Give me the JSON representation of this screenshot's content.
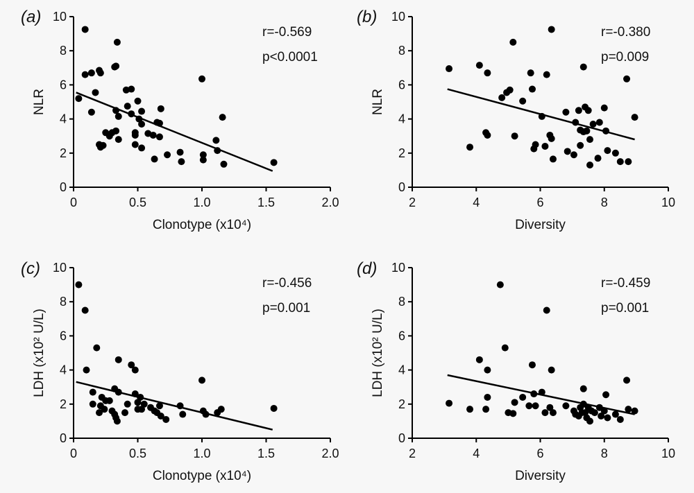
{
  "colors": {
    "background": "#f7f7f7",
    "point": "#000000",
    "axis": "#000000",
    "line": "#000000"
  },
  "chart_data": [
    {
      "type": "scatter",
      "panel_label": "(a)",
      "xlabel": "Clonotype (x10⁴)",
      "ylabel": "NLR",
      "xlim": [
        0,
        2.0
      ],
      "ylim": [
        0,
        10
      ],
      "xticks": [
        "0",
        "0.5",
        "1.0",
        "1.5",
        "2.0"
      ],
      "xtick_values": [
        0,
        0.5,
        1.0,
        1.5,
        2.0
      ],
      "yticks": [
        "0",
        "2",
        "4",
        "6",
        "8",
        "10"
      ],
      "ytick_values": [
        0,
        2,
        4,
        6,
        8,
        10
      ],
      "stats": [
        "r=-0.569",
        "p<0.0001"
      ],
      "grid": false,
      "fit_line": [
        [
          0.02,
          5.55
        ],
        [
          1.55,
          0.95
        ]
      ],
      "points": [
        [
          0.04,
          5.2
        ],
        [
          0.09,
          9.25
        ],
        [
          0.09,
          6.6
        ],
        [
          0.14,
          6.7
        ],
        [
          0.14,
          4.4
        ],
        [
          0.17,
          5.55
        ],
        [
          0.2,
          6.85
        ],
        [
          0.21,
          6.7
        ],
        [
          0.2,
          2.5
        ],
        [
          0.21,
          2.35
        ],
        [
          0.23,
          2.45
        ],
        [
          0.25,
          3.2
        ],
        [
          0.28,
          3.0
        ],
        [
          0.3,
          3.2
        ],
        [
          0.32,
          7.05
        ],
        [
          0.33,
          7.1
        ],
        [
          0.34,
          8.5
        ],
        [
          0.33,
          4.5
        ],
        [
          0.35,
          4.15
        ],
        [
          0.33,
          3.3
        ],
        [
          0.35,
          2.8
        ],
        [
          0.41,
          5.7
        ],
        [
          0.45,
          5.75
        ],
        [
          0.42,
          4.75
        ],
        [
          0.45,
          4.3
        ],
        [
          0.48,
          3.2
        ],
        [
          0.48,
          3.05
        ],
        [
          0.5,
          5.05
        ],
        [
          0.51,
          4.0
        ],
        [
          0.48,
          2.5
        ],
        [
          0.53,
          4.45
        ],
        [
          0.53,
          3.7
        ],
        [
          0.53,
          2.3
        ],
        [
          0.58,
          3.15
        ],
        [
          0.62,
          3.05
        ],
        [
          0.63,
          1.65
        ],
        [
          0.65,
          3.8
        ],
        [
          0.67,
          3.75
        ],
        [
          0.67,
          2.95
        ],
        [
          0.68,
          4.6
        ],
        [
          0.73,
          1.9
        ],
        [
          0.83,
          2.05
        ],
        [
          0.84,
          1.5
        ],
        [
          1.0,
          6.35
        ],
        [
          1.01,
          1.9
        ],
        [
          1.01,
          1.6
        ],
        [
          1.11,
          2.75
        ],
        [
          1.12,
          2.15
        ],
        [
          1.16,
          4.1
        ],
        [
          1.17,
          1.35
        ],
        [
          1.56,
          1.45
        ]
      ]
    },
    {
      "type": "scatter",
      "panel_label": "(b)",
      "xlabel": "Diversity",
      "ylabel": "NLR",
      "xlim": [
        2,
        10
      ],
      "ylim": [
        0,
        10
      ],
      "xticks": [
        "2",
        "4",
        "6",
        "8",
        "10"
      ],
      "xtick_values": [
        2,
        4,
        6,
        8,
        10
      ],
      "yticks": [
        "0",
        "2",
        "4",
        "6",
        "8",
        "10"
      ],
      "ytick_values": [
        0,
        2,
        4,
        6,
        8,
        10
      ],
      "stats": [
        "r=-0.380",
        "p=0.009"
      ],
      "grid": false,
      "fit_line": [
        [
          3.1,
          5.75
        ],
        [
          8.95,
          2.8
        ]
      ],
      "points": [
        [
          3.15,
          6.95
        ],
        [
          3.8,
          2.35
        ],
        [
          4.1,
          7.15
        ],
        [
          4.3,
          3.2
        ],
        [
          4.35,
          3.05
        ],
        [
          4.35,
          6.7
        ],
        [
          4.8,
          5.25
        ],
        [
          4.95,
          5.55
        ],
        [
          5.05,
          5.7
        ],
        [
          5.15,
          8.5
        ],
        [
          5.2,
          3.0
        ],
        [
          5.45,
          5.05
        ],
        [
          5.7,
          6.7
        ],
        [
          5.75,
          5.75
        ],
        [
          5.8,
          2.25
        ],
        [
          5.85,
          2.5
        ],
        [
          6.05,
          4.15
        ],
        [
          6.15,
          2.4
        ],
        [
          6.2,
          6.6
        ],
        [
          6.3,
          3.05
        ],
        [
          6.35,
          2.85
        ],
        [
          6.35,
          9.25
        ],
        [
          6.4,
          1.65
        ],
        [
          6.8,
          4.4
        ],
        [
          6.85,
          2.1
        ],
        [
          7.05,
          1.9
        ],
        [
          7.1,
          3.8
        ],
        [
          7.2,
          4.5
        ],
        [
          7.25,
          3.35
        ],
        [
          7.25,
          2.45
        ],
        [
          7.35,
          7.05
        ],
        [
          7.35,
          3.25
        ],
        [
          7.4,
          4.7
        ],
        [
          7.45,
          3.3
        ],
        [
          7.5,
          4.5
        ],
        [
          7.55,
          2.8
        ],
        [
          7.55,
          1.3
        ],
        [
          7.65,
          3.7
        ],
        [
          7.8,
          1.7
        ],
        [
          7.85,
          3.8
        ],
        [
          8.0,
          4.65
        ],
        [
          8.05,
          3.3
        ],
        [
          8.1,
          2.15
        ],
        [
          8.35,
          2.0
        ],
        [
          8.5,
          1.5
        ],
        [
          8.7,
          6.35
        ],
        [
          8.75,
          1.5
        ],
        [
          8.95,
          4.1
        ]
      ]
    },
    {
      "type": "scatter",
      "panel_label": "(c)",
      "xlabel": "Clonotype (x10⁴)",
      "ylabel": "LDH (x10² U/L)",
      "xlim": [
        0,
        2.0
      ],
      "ylim": [
        0,
        10
      ],
      "xticks": [
        "0",
        "0.5",
        "1.0",
        "1.5",
        "2.0"
      ],
      "xtick_values": [
        0,
        0.5,
        1.0,
        1.5,
        2.0
      ],
      "yticks": [
        "0",
        "2",
        "4",
        "6",
        "8",
        "10"
      ],
      "ytick_values": [
        0,
        2,
        4,
        6,
        8,
        10
      ],
      "stats": [
        "r=-0.456",
        "p=0.001"
      ],
      "grid": false,
      "fit_line": [
        [
          0.02,
          3.3
        ],
        [
          1.55,
          0.5
        ]
      ],
      "points": [
        [
          0.04,
          9.0
        ],
        [
          0.09,
          7.5
        ],
        [
          0.1,
          4.0
        ],
        [
          0.15,
          2.7
        ],
        [
          0.15,
          2.0
        ],
        [
          0.18,
          5.3
        ],
        [
          0.2,
          1.5
        ],
        [
          0.21,
          1.9
        ],
        [
          0.22,
          2.4
        ],
        [
          0.24,
          1.7
        ],
        [
          0.25,
          2.2
        ],
        [
          0.28,
          2.2
        ],
        [
          0.3,
          1.6
        ],
        [
          0.32,
          1.4
        ],
        [
          0.32,
          2.9
        ],
        [
          0.33,
          1.2
        ],
        [
          0.34,
          1.0
        ],
        [
          0.35,
          4.6
        ],
        [
          0.35,
          2.7
        ],
        [
          0.4,
          1.5
        ],
        [
          0.42,
          2.0
        ],
        [
          0.45,
          4.3
        ],
        [
          0.48,
          4.0
        ],
        [
          0.48,
          2.6
        ],
        [
          0.5,
          1.7
        ],
        [
          0.5,
          2.1
        ],
        [
          0.52,
          2.4
        ],
        [
          0.53,
          1.7
        ],
        [
          0.55,
          2.0
        ],
        [
          0.6,
          1.8
        ],
        [
          0.63,
          1.6
        ],
        [
          0.65,
          1.5
        ],
        [
          0.67,
          1.9
        ],
        [
          0.68,
          1.3
        ],
        [
          0.72,
          1.1
        ],
        [
          0.83,
          1.9
        ],
        [
          0.85,
          1.4
        ],
        [
          1.0,
          3.4
        ],
        [
          1.01,
          1.6
        ],
        [
          1.03,
          1.4
        ],
        [
          1.12,
          1.5
        ],
        [
          1.15,
          1.7
        ],
        [
          1.56,
          1.75
        ]
      ]
    },
    {
      "type": "scatter",
      "panel_label": "(d)",
      "xlabel": "Diversity",
      "ylabel": "LDH (x10² U/L)",
      "xlim": [
        2,
        10
      ],
      "ylim": [
        0,
        10
      ],
      "xticks": [
        "2",
        "4",
        "6",
        "8",
        "10"
      ],
      "xtick_values": [
        2,
        4,
        6,
        8,
        10
      ],
      "yticks": [
        "0",
        "2",
        "4",
        "6",
        "8",
        "10"
      ],
      "ytick_values": [
        0,
        2,
        4,
        6,
        8,
        10
      ],
      "stats": [
        "r=-0.459",
        "p=0.001"
      ],
      "grid": false,
      "fit_line": [
        [
          3.1,
          3.7
        ],
        [
          8.95,
          1.4
        ]
      ],
      "points": [
        [
          3.15,
          2.05
        ],
        [
          3.8,
          1.7
        ],
        [
          4.1,
          4.6
        ],
        [
          4.3,
          1.7
        ],
        [
          4.35,
          4.0
        ],
        [
          4.35,
          2.4
        ],
        [
          4.75,
          9.0
        ],
        [
          4.9,
          5.3
        ],
        [
          5.0,
          1.5
        ],
        [
          5.15,
          1.45
        ],
        [
          5.2,
          2.1
        ],
        [
          5.45,
          2.4
        ],
        [
          5.65,
          1.9
        ],
        [
          5.75,
          4.3
        ],
        [
          5.8,
          2.6
        ],
        [
          5.85,
          1.9
        ],
        [
          6.05,
          2.7
        ],
        [
          6.15,
          1.5
        ],
        [
          6.2,
          7.5
        ],
        [
          6.3,
          1.8
        ],
        [
          6.35,
          4.0
        ],
        [
          6.4,
          1.5
        ],
        [
          6.8,
          1.9
        ],
        [
          7.05,
          1.6
        ],
        [
          7.1,
          1.4
        ],
        [
          7.2,
          1.3
        ],
        [
          7.25,
          1.8
        ],
        [
          7.3,
          1.5
        ],
        [
          7.35,
          2.9
        ],
        [
          7.35,
          2.0
        ],
        [
          7.4,
          1.5
        ],
        [
          7.45,
          1.2
        ],
        [
          7.5,
          1.8
        ],
        [
          7.55,
          1.0
        ],
        [
          7.6,
          1.6
        ],
        [
          7.7,
          1.5
        ],
        [
          7.85,
          1.8
        ],
        [
          7.9,
          1.3
        ],
        [
          8.0,
          1.6
        ],
        [
          8.05,
          2.55
        ],
        [
          8.1,
          1.2
        ],
        [
          8.35,
          1.4
        ],
        [
          8.5,
          1.1
        ],
        [
          8.7,
          3.4
        ],
        [
          8.75,
          1.7
        ],
        [
          8.95,
          1.6
        ]
      ]
    }
  ]
}
